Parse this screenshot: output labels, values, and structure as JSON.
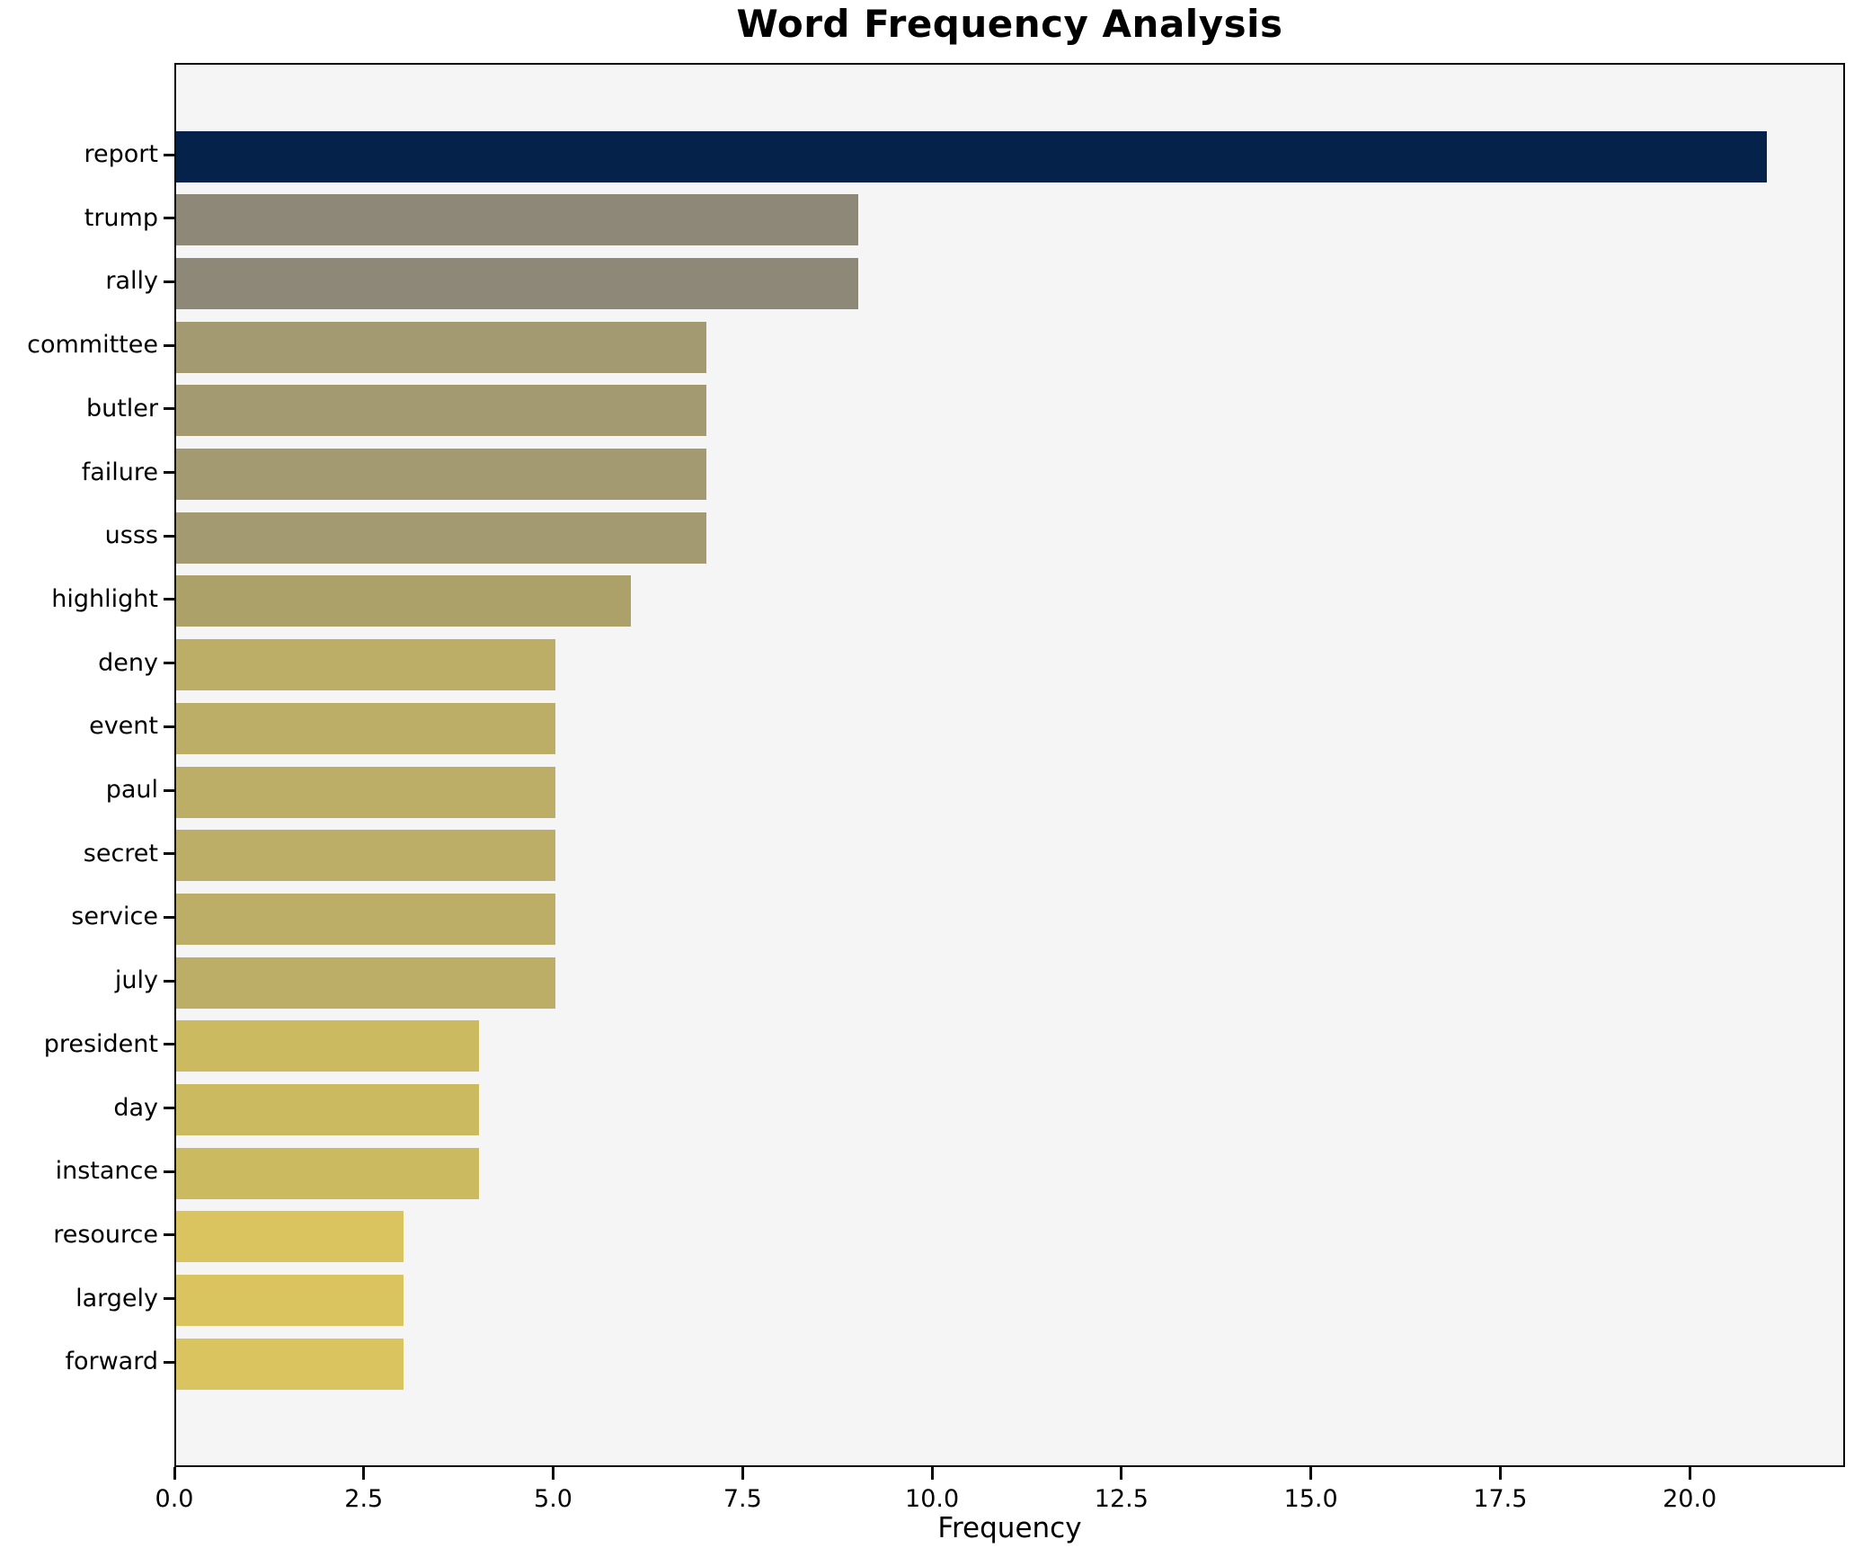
{
  "chart_data": {
    "type": "bar",
    "orientation": "horizontal",
    "title": "Word Frequency Analysis",
    "xlabel": "Frequency",
    "ylabel": "",
    "categories": [
      "report",
      "trump",
      "rally",
      "committee",
      "butler",
      "failure",
      "usss",
      "highlight",
      "deny",
      "event",
      "paul",
      "secret",
      "service",
      "july",
      "president",
      "day",
      "instance",
      "resource",
      "largely",
      "forward"
    ],
    "values": [
      21,
      9,
      9,
      7,
      7,
      7,
      7,
      6,
      5,
      5,
      5,
      5,
      5,
      5,
      4,
      4,
      4,
      3,
      3,
      3
    ],
    "bar_colors": [
      "#04224a",
      "#8e8879",
      "#8e8879",
      "#a39a72",
      "#a39a72",
      "#a39a72",
      "#a39a72",
      "#aca169",
      "#bcae67",
      "#bcae67",
      "#bcae67",
      "#bcae67",
      "#bcae67",
      "#bcae67",
      "#ccba60",
      "#ccba60",
      "#ccba60",
      "#d9c45f",
      "#d9c45f",
      "#d9c45f"
    ],
    "xlim": [
      0,
      22.05
    ],
    "xticks": [
      0,
      2.5,
      5,
      7.5,
      10,
      12.5,
      15,
      17.5,
      20
    ],
    "xtick_labels": [
      "0.0",
      "2.5",
      "5.0",
      "7.5",
      "10.0",
      "12.5",
      "15.0",
      "17.5",
      "20.0"
    ],
    "grid": false,
    "legend_position": "none",
    "plot_background": "#f5f5f6",
    "figure_background": "#ffffff",
    "spine_color": "#0a0a0a",
    "bar_height_fraction": 0.8
  }
}
